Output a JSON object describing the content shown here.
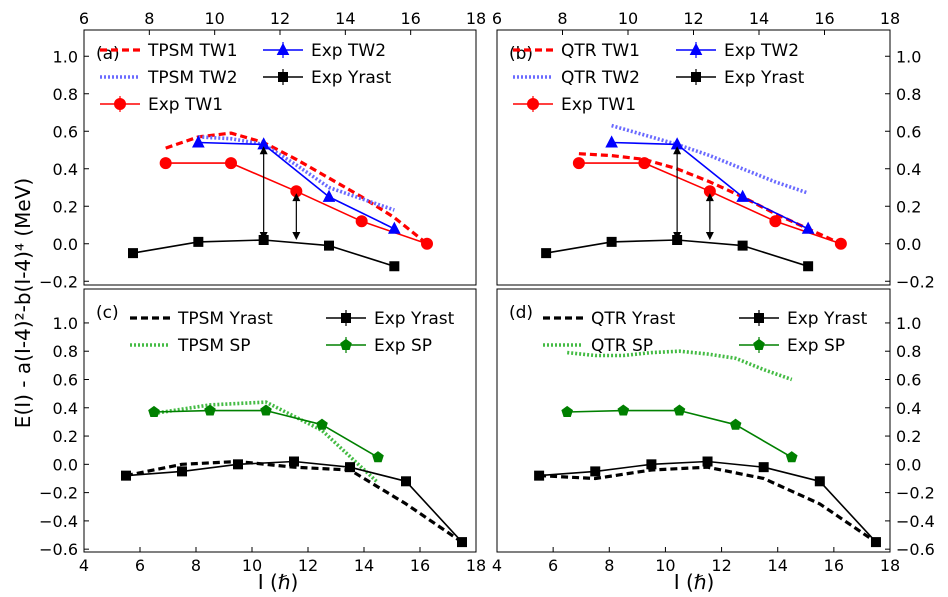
{
  "figure": {
    "ylabel": "E(I) - a(I-4)²-b(I-4)⁴ (MeV)",
    "xlabel": "I (ℏ)"
  },
  "chart_data": [
    {
      "type": "line",
      "panel_label": "(a)",
      "xlim": [
        6,
        18
      ],
      "ylim": [
        -0.22,
        1.14
      ],
      "xticks": [
        6,
        8,
        10,
        12,
        14,
        16,
        18
      ],
      "yticks": [
        -0.2,
        0.0,
        0.2,
        0.4,
        0.6,
        0.8,
        1.0
      ],
      "xtick_position": "top",
      "ytick_position": "left",
      "legend_cols": 2,
      "series": [
        {
          "name": "TPSM TW1",
          "style": "dashed",
          "color": "#ff0000",
          "marker": "none",
          "x": [
            8.5,
            9.5,
            10.5,
            11.5,
            12.5,
            13.5,
            14.5,
            15.5,
            16.5
          ],
          "y": [
            0.51,
            0.57,
            0.59,
            0.54,
            0.45,
            0.35,
            0.25,
            0.14,
            0.0
          ]
        },
        {
          "name": "TPSM TW2",
          "style": "dotted",
          "color": "#6a6aff",
          "marker": "none",
          "x": [
            9.5,
            10.5,
            11.5,
            12.5,
            13.5,
            14.5,
            15.5
          ],
          "y": [
            0.57,
            0.56,
            0.53,
            0.42,
            0.3,
            0.24,
            0.18
          ]
        },
        {
          "name": "Exp TW1",
          "style": "solid",
          "color": "#ff0000",
          "marker": "circle",
          "x": [
            8.5,
            10.5,
            12.5,
            14.5,
            16.5
          ],
          "y": [
            0.43,
            0.43,
            0.28,
            0.12,
            0.0
          ]
        },
        {
          "name": "Exp TW2",
          "style": "solid",
          "color": "#0000ff",
          "marker": "triangle",
          "x": [
            9.5,
            11.5,
            13.5,
            15.5
          ],
          "y": [
            0.54,
            0.53,
            0.25,
            0.08
          ]
        },
        {
          "name": "Exp Yrast",
          "style": "solid",
          "color": "#000000",
          "marker": "square",
          "x": [
            7.5,
            9.5,
            11.5,
            13.5,
            15.5
          ],
          "y": [
            -0.05,
            0.01,
            0.02,
            -0.01,
            -0.12
          ]
        }
      ],
      "arrows": [
        {
          "x": 11.5,
          "from": 0.02,
          "to": 0.52
        },
        {
          "x": 12.5,
          "from": 0.02,
          "to": 0.27
        }
      ]
    },
    {
      "type": "line",
      "panel_label": "(b)",
      "xlim": [
        6,
        18
      ],
      "ylim": [
        -0.22,
        1.14
      ],
      "xticks": [
        6,
        8,
        10,
        12,
        14,
        16,
        18
      ],
      "yticks": [
        -0.2,
        0.0,
        0.2,
        0.4,
        0.6,
        0.8,
        1.0
      ],
      "xtick_position": "top",
      "ytick_position": "right",
      "legend_cols": 2,
      "series": [
        {
          "name": "QTR TW1",
          "style": "dashed",
          "color": "#ff0000",
          "marker": "none",
          "x": [
            8.5,
            9.5,
            10.5,
            11.5,
            12.5,
            13.5,
            14.5,
            15.5,
            16.5
          ],
          "y": [
            0.48,
            0.47,
            0.45,
            0.4,
            0.33,
            0.25,
            0.16,
            0.08,
            0.0
          ]
        },
        {
          "name": "QTR TW2",
          "style": "dotted",
          "color": "#6a6aff",
          "marker": "none",
          "x": [
            9.5,
            10.5,
            11.5,
            12.5,
            13.5,
            14.5,
            15.5
          ],
          "y": [
            0.63,
            0.58,
            0.53,
            0.47,
            0.4,
            0.33,
            0.27
          ]
        },
        {
          "name": "Exp TW1",
          "style": "solid",
          "color": "#ff0000",
          "marker": "circle",
          "x": [
            8.5,
            10.5,
            12.5,
            14.5,
            16.5
          ],
          "y": [
            0.43,
            0.43,
            0.28,
            0.12,
            0.0
          ]
        },
        {
          "name": "Exp TW2",
          "style": "solid",
          "color": "#0000ff",
          "marker": "triangle",
          "x": [
            9.5,
            11.5,
            13.5,
            15.5
          ],
          "y": [
            0.54,
            0.53,
            0.25,
            0.08
          ]
        },
        {
          "name": "Exp Yrast",
          "style": "solid",
          "color": "#000000",
          "marker": "square",
          "x": [
            7.5,
            9.5,
            11.5,
            13.5,
            15.5
          ],
          "y": [
            -0.05,
            0.01,
            0.02,
            -0.01,
            -0.12
          ]
        }
      ],
      "arrows": [
        {
          "x": 11.5,
          "from": 0.02,
          "to": 0.52
        },
        {
          "x": 12.5,
          "from": 0.02,
          "to": 0.27
        }
      ]
    },
    {
      "type": "line",
      "panel_label": "(c)",
      "xlim": [
        4,
        18
      ],
      "ylim": [
        -0.62,
        1.24
      ],
      "xticks": [
        4,
        6,
        8,
        10,
        12,
        14,
        16,
        18
      ],
      "yticks": [
        -0.6,
        -0.4,
        -0.2,
        0.0,
        0.2,
        0.4,
        0.6,
        0.8,
        1.0
      ],
      "xtick_position": "bottom",
      "ytick_position": "left",
      "legend_cols": 2,
      "series": [
        {
          "name": "TPSM Yrast",
          "style": "dashed",
          "color": "#000000",
          "marker": "none",
          "x": [
            5.5,
            7.5,
            9.5,
            11.5,
            13.5,
            15.5,
            17.5
          ],
          "y": [
            -0.08,
            0.0,
            0.02,
            -0.02,
            -0.04,
            -0.28,
            -0.55
          ]
        },
        {
          "name": "TPSM SP",
          "style": "dotted",
          "color": "#44bb44",
          "marker": "none",
          "x": [
            6.5,
            8.5,
            10.5,
            12.5,
            14.5
          ],
          "y": [
            0.36,
            0.42,
            0.44,
            0.24,
            -0.13
          ]
        },
        {
          "name": "Exp Yrast",
          "style": "solid",
          "color": "#000000",
          "marker": "square",
          "x": [
            5.5,
            7.5,
            9.5,
            11.5,
            13.5,
            15.5,
            17.5
          ],
          "y": [
            -0.08,
            -0.05,
            0.0,
            0.02,
            -0.02,
            -0.12,
            -0.55
          ]
        },
        {
          "name": "Exp SP",
          "style": "solid",
          "color": "#008000",
          "marker": "pentagon",
          "x": [
            6.5,
            8.5,
            10.5,
            12.5,
            14.5
          ],
          "y": [
            0.37,
            0.38,
            0.38,
            0.28,
            0.05
          ]
        }
      ],
      "arrows": []
    },
    {
      "type": "line",
      "panel_label": "(d)",
      "xlim": [
        4,
        18
      ],
      "ylim": [
        -0.62,
        1.24
      ],
      "xticks": [
        4,
        6,
        8,
        10,
        12,
        14,
        16,
        18
      ],
      "yticks": [
        -0.6,
        -0.4,
        -0.2,
        0.0,
        0.2,
        0.4,
        0.6,
        0.8,
        1.0
      ],
      "xtick_position": "bottom",
      "ytick_position": "right",
      "legend_cols": 2,
      "series": [
        {
          "name": "QTR Yrast",
          "style": "dashed",
          "color": "#000000",
          "marker": "none",
          "x": [
            5.5,
            7.5,
            9.5,
            11.5,
            13.5,
            15.5,
            17.5
          ],
          "y": [
            -0.08,
            -0.1,
            -0.04,
            -0.02,
            -0.1,
            -0.28,
            -0.55
          ]
        },
        {
          "name": "QTR SP",
          "style": "dotted",
          "color": "#44bb44",
          "marker": "none",
          "x": [
            6.5,
            7.5,
            8.5,
            9.5,
            10.5,
            11.5,
            12.5,
            13.5,
            14.5
          ],
          "y": [
            0.79,
            0.77,
            0.77,
            0.79,
            0.8,
            0.78,
            0.75,
            0.67,
            0.6
          ]
        },
        {
          "name": "Exp Yrast",
          "style": "solid",
          "color": "#000000",
          "marker": "square",
          "x": [
            5.5,
            7.5,
            9.5,
            11.5,
            13.5,
            15.5,
            17.5
          ],
          "y": [
            -0.08,
            -0.05,
            0.0,
            0.02,
            -0.02,
            -0.12,
            -0.55
          ]
        },
        {
          "name": "Exp SP",
          "style": "solid",
          "color": "#008000",
          "marker": "pentagon",
          "x": [
            6.5,
            8.5,
            10.5,
            12.5,
            14.5
          ],
          "y": [
            0.37,
            0.38,
            0.38,
            0.28,
            0.05
          ]
        }
      ],
      "arrows": []
    }
  ]
}
